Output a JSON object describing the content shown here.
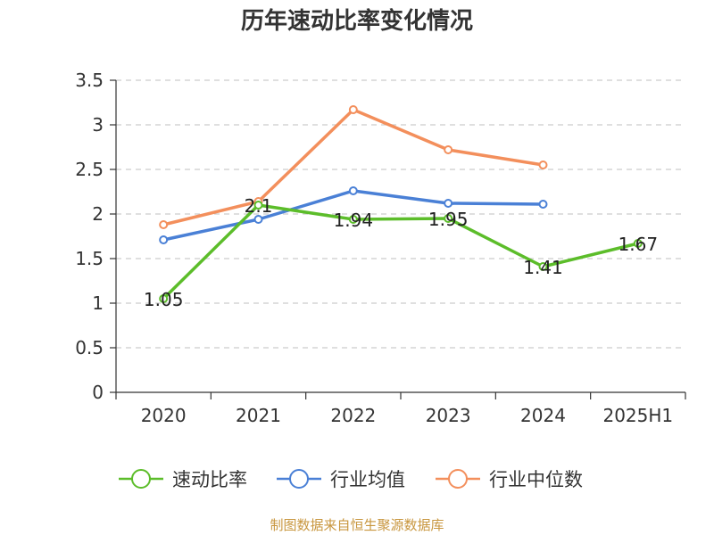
{
  "chart_data": {
    "type": "line",
    "title": "历年速动比率变化情况",
    "categories": [
      "2020",
      "2021",
      "2022",
      "2023",
      "2024",
      "2025H1"
    ],
    "ylim": [
      0,
      3.5
    ],
    "yticks": [
      "0",
      "0.5",
      "1",
      "1.5",
      "2",
      "2.5",
      "3",
      "3.5"
    ],
    "grid": true,
    "legend_position": "bottom",
    "series": [
      {
        "name": "速动比率",
        "color": "#5cbd2a",
        "values": [
          1.05,
          2.1,
          1.94,
          1.95,
          1.41,
          1.67
        ],
        "labels": [
          "1.05",
          "2.1",
          "1.94",
          "1.95",
          "1.41",
          "1.67"
        ]
      },
      {
        "name": "行业均值",
        "color": "#4a80d6",
        "values": [
          1.71,
          1.94,
          2.26,
          2.12,
          2.11,
          null
        ]
      },
      {
        "name": "行业中位数",
        "color": "#f38f5c",
        "values": [
          1.88,
          2.14,
          3.17,
          2.72,
          2.55,
          null
        ]
      }
    ]
  },
  "source": "制图数据来自恒生聚源数据库"
}
